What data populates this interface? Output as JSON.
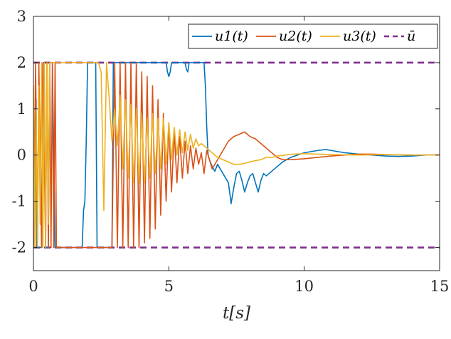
{
  "chart_data": {
    "type": "line",
    "title": "",
    "xlabel": "t[s]",
    "ylabel": "",
    "xlim": [
      0,
      15
    ],
    "ylim": [
      -2.5,
      3
    ],
    "xticks": [
      0,
      5,
      10,
      15
    ],
    "xtick_labels": [
      "0",
      "5",
      "10",
      "15"
    ],
    "yticks": [
      3,
      2,
      1,
      0,
      -1,
      -2
    ],
    "ytick_labels": [
      "3",
      "2",
      "1",
      "0",
      "-1",
      "-2"
    ],
    "grid": false,
    "legend_position": "top-right",
    "legend": [
      "u1(t)",
      "u2(t)",
      "u3(t)",
      "ū"
    ],
    "bounds": {
      "name": "ū",
      "upper": 2,
      "lower": -2,
      "color": "#7E2F8E",
      "style": "dashed"
    },
    "series": [
      {
        "name": "u1(t)",
        "color": "#0072BD",
        "x": [
          0,
          0.05,
          0.1,
          0.12,
          0.15,
          0.3,
          0.35,
          0.4,
          0.45,
          0.5,
          0.55,
          0.6,
          0.7,
          0.8,
          1.0,
          1.5,
          1.8,
          1.85,
          1.9,
          1.95,
          2.0,
          2.05,
          2.1,
          2.2,
          2.3,
          2.35,
          2.4,
          2.5,
          2.9,
          2.95,
          3.0,
          3.1,
          4.0,
          4.9,
          4.95,
          5.0,
          5.05,
          5.1,
          5.6,
          5.65,
          5.7,
          5.75,
          6.3,
          6.35,
          6.4,
          6.45,
          6.5,
          6.6,
          6.7,
          6.8,
          6.9,
          7.0,
          7.1,
          7.2,
          7.3,
          7.4,
          7.5,
          7.6,
          7.7,
          7.8,
          7.9,
          8.0,
          8.1,
          8.2,
          8.3,
          8.4,
          8.5,
          8.6,
          8.8,
          9.0,
          9.2,
          9.5,
          10.0,
          10.5,
          10.8,
          11.0,
          11.5,
          12.0,
          12.5,
          13.0,
          13.5,
          14.0,
          14.5,
          15.0
        ],
        "values": [
          -2,
          -0.5,
          1.2,
          -2,
          -2,
          -2,
          2,
          2,
          -2,
          -2,
          -2,
          2,
          2,
          -2,
          -2,
          -2,
          -2,
          -1.2,
          -1.0,
          0.3,
          2,
          2,
          2,
          2,
          2,
          -2,
          -2,
          -2,
          -2,
          2,
          2,
          2,
          2,
          2,
          1.8,
          1.7,
          1.8,
          2,
          2,
          1.85,
          1.8,
          2,
          2,
          1.5,
          0.6,
          0.0,
          -0.1,
          -0.25,
          -0.35,
          -0.2,
          -0.3,
          -0.4,
          -0.5,
          -0.6,
          -1.05,
          -0.7,
          -0.4,
          -0.35,
          -0.55,
          -0.8,
          -0.6,
          -0.45,
          -0.4,
          -0.6,
          -0.8,
          -0.55,
          -0.4,
          -0.45,
          -0.35,
          -0.25,
          -0.15,
          -0.05,
          0.05,
          0.1,
          0.12,
          0.1,
          0.05,
          0.02,
          0.0,
          -0.02,
          -0.03,
          -0.02,
          0.0,
          0.0
        ]
      },
      {
        "name": "u2(t)",
        "color": "#D95319",
        "x": [
          0,
          0.08,
          0.15,
          0.2,
          0.3,
          0.35,
          0.45,
          0.5,
          0.55,
          0.6,
          0.65,
          0.7,
          0.75,
          0.8,
          0.85,
          1.0,
          2.9,
          3.0,
          3.1,
          3.2,
          3.3,
          3.4,
          3.5,
          3.6,
          3.7,
          3.8,
          3.9,
          4.0,
          4.1,
          4.2,
          4.3,
          4.4,
          4.5,
          4.6,
          4.7,
          4.8,
          4.9,
          5.0,
          5.1,
          5.2,
          5.3,
          5.4,
          5.5,
          5.6,
          5.7,
          5.8,
          5.9,
          6.0,
          6.1,
          6.2,
          6.3,
          6.4,
          6.5,
          6.6,
          6.8,
          7.0,
          7.2,
          7.4,
          7.6,
          7.8,
          8.0,
          8.2,
          8.4,
          8.6,
          8.8,
          9.0,
          9.2,
          9.5,
          10.0,
          10.5,
          11.0,
          11.5,
          12.0,
          12.5,
          13.0,
          14.0,
          15.0
        ],
        "values": [
          -2,
          2,
          -2,
          2,
          -2,
          2,
          -2,
          2,
          -2,
          2,
          -2,
          2,
          -2,
          2,
          -2,
          -2,
          -2,
          2,
          -2,
          2,
          -2,
          2,
          -2,
          2,
          -2,
          2,
          -2,
          1.8,
          -1.9,
          1.7,
          -1.8,
          1.5,
          -1.6,
          1.2,
          -1.3,
          0.9,
          -1.0,
          0.7,
          -0.8,
          0.5,
          -0.6,
          0.4,
          -0.5,
          0.3,
          -0.4,
          0.2,
          -0.3,
          0.15,
          -0.2,
          0.05,
          -0.4,
          0.1,
          -0.1,
          -0.3,
          -0.1,
          0.1,
          0.3,
          0.4,
          0.45,
          0.5,
          0.4,
          0.35,
          0.25,
          0.15,
          0.05,
          -0.05,
          -0.1,
          -0.1,
          -0.08,
          -0.05,
          -0.02,
          0.0,
          0.02,
          0.02,
          0.01,
          0.0,
          0.0
        ]
      },
      {
        "name": "u3(t)",
        "color": "#EDB120",
        "x": [
          0,
          0.05,
          0.1,
          0.15,
          0.2,
          0.25,
          0.3,
          0.35,
          0.4,
          0.45,
          0.5,
          0.55,
          0.6,
          0.65,
          0.7,
          0.75,
          0.8,
          1.0,
          1.2,
          1.4,
          1.6,
          1.8,
          2.0,
          2.2,
          2.4,
          2.5,
          2.6,
          2.7,
          2.8,
          2.9,
          3.0,
          3.1,
          3.2,
          3.3,
          3.4,
          3.5,
          3.6,
          3.7,
          3.8,
          3.9,
          4.0,
          4.1,
          4.2,
          4.3,
          4.4,
          4.5,
          4.6,
          4.7,
          4.8,
          4.9,
          5.0,
          5.1,
          5.2,
          5.3,
          5.4,
          5.5,
          5.6,
          5.7,
          5.8,
          5.9,
          6.0,
          6.1,
          6.2,
          6.3,
          6.4,
          6.5,
          6.6,
          6.8,
          7.0,
          7.2,
          7.4,
          7.6,
          7.8,
          8.0,
          8.2,
          8.4,
          8.6,
          8.8,
          9.0,
          9.3,
          9.6,
          10.0,
          10.5,
          11.0,
          12.0,
          13.0,
          14.0,
          15.0
        ],
        "values": [
          1.5,
          -2,
          1.0,
          -2,
          1.5,
          -1.5,
          2,
          -2,
          2,
          -2,
          2,
          -1.5,
          2,
          2,
          2,
          2,
          2,
          2,
          2,
          2,
          2,
          2,
          2,
          2,
          2,
          1.8,
          -1.2,
          2,
          1.2,
          0.3,
          1.0,
          0.2,
          1.3,
          -0.3,
          1.2,
          -0.5,
          1.1,
          -0.6,
          1.0,
          -0.6,
          0.9,
          -0.6,
          0.8,
          -0.5,
          0.9,
          -0.4,
          0.8,
          -0.3,
          0.8,
          -0.2,
          0.7,
          -0.1,
          0.6,
          0.0,
          0.55,
          0.05,
          0.5,
          0.1,
          0.45,
          0.15,
          0.35,
          0.2,
          0.25,
          0.2,
          0.15,
          0.1,
          0.05,
          -0.05,
          -0.1,
          -0.15,
          -0.2,
          -0.2,
          -0.18,
          -0.15,
          -0.12,
          -0.1,
          -0.05,
          -0.05,
          -0.02,
          0.0,
          0.02,
          0.03,
          0.02,
          0.01,
          0.0,
          0.01,
          0.0,
          0.0
        ]
      }
    ]
  }
}
